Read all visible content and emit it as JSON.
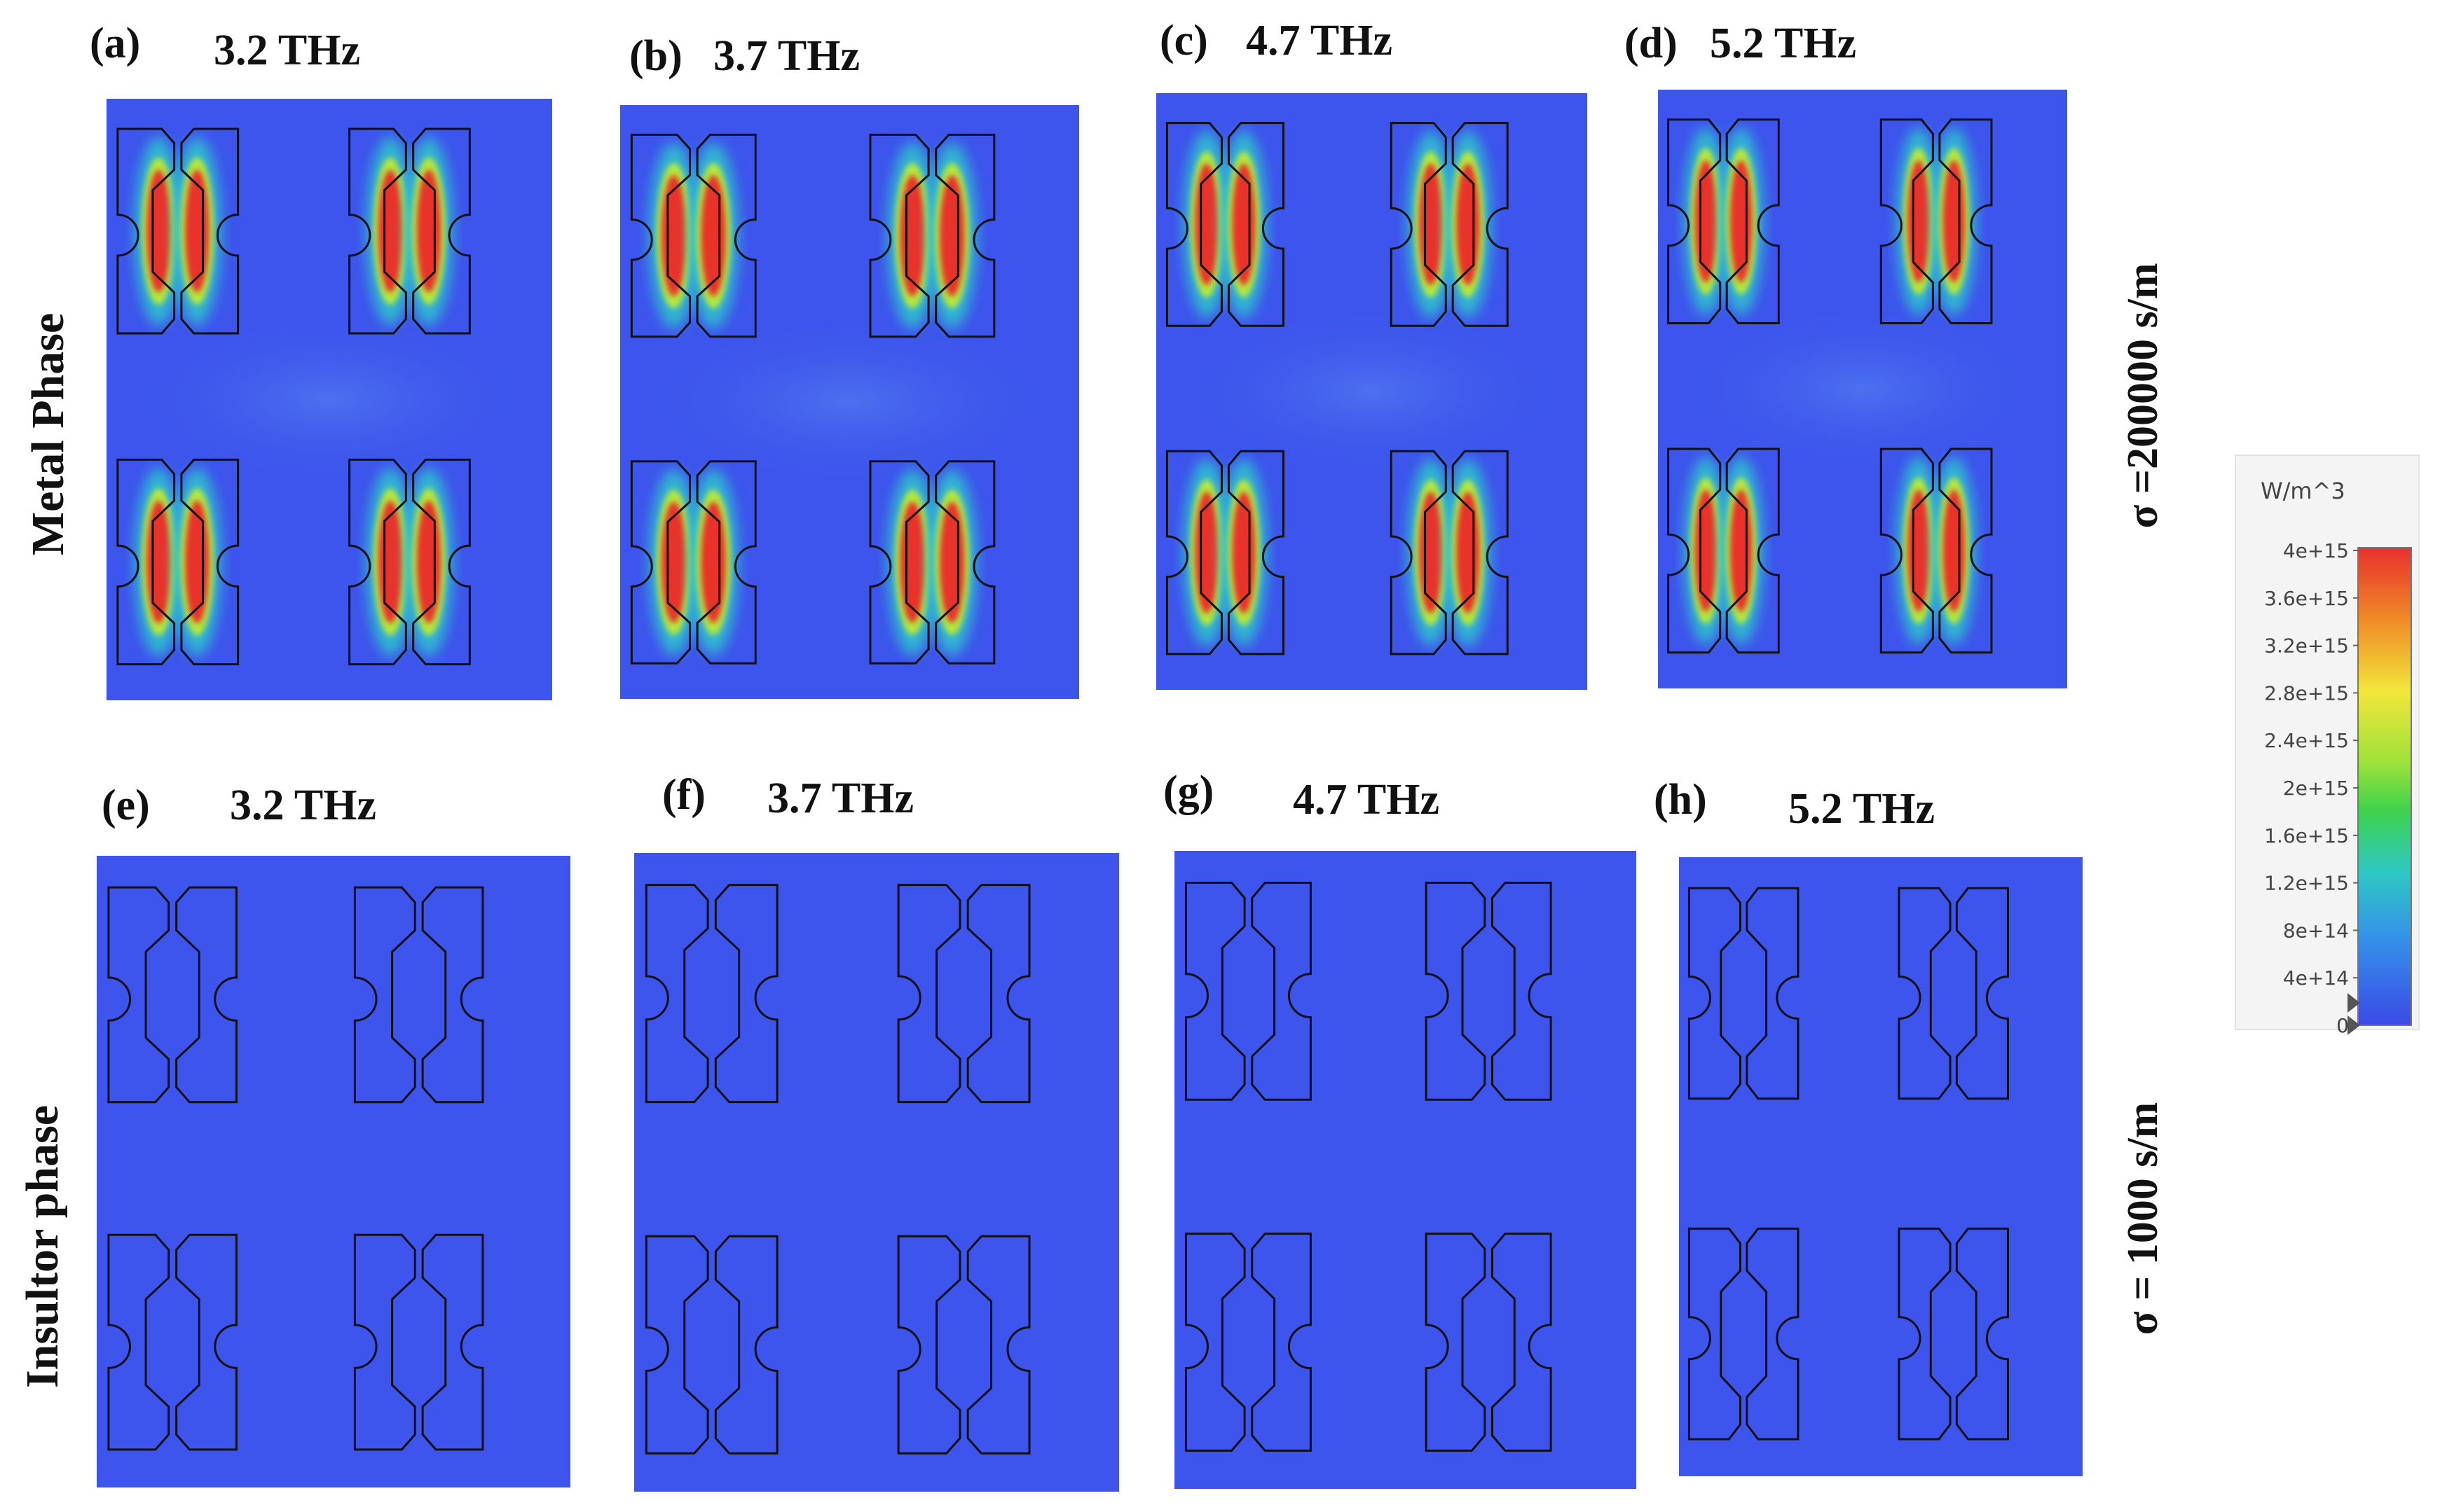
{
  "row_labels": {
    "top": "Metal Phase",
    "bottom": "Insultor phase"
  },
  "conductivity_labels": {
    "top": "σ =200000 s/m",
    "bottom": "σ = 1000 s/m"
  },
  "panels": [
    {
      "tag": "(a)",
      "freq": "3.2 THz",
      "phase": "metal"
    },
    {
      "tag": "(b)",
      "freq": "3.7 THz",
      "phase": "metal"
    },
    {
      "tag": "(c)",
      "freq": "4.7 THz",
      "phase": "metal"
    },
    {
      "tag": "(d)",
      "freq": "5.2 THz",
      "phase": "metal"
    },
    {
      "tag": "(e)",
      "freq": "3.2 THz",
      "phase": "insulator"
    },
    {
      "tag": "(f)",
      "freq": "3.7 THz",
      "phase": "insulator"
    },
    {
      "tag": "(g)",
      "freq": "4.7 THz",
      "phase": "insulator"
    },
    {
      "tag": "(h)",
      "freq": "5.2 THz",
      "phase": "insulator"
    }
  ],
  "colorbar": {
    "unit": "W/m^3",
    "ticks": [
      "4e+15",
      "3.6e+15",
      "3.2e+15",
      "2.8e+15",
      "2.4e+15",
      "2e+15",
      "1.6e+15",
      "1.2e+15",
      "8e+14",
      "4e+14",
      "0"
    ],
    "colors": [
      "#e8302c",
      "#f08a28",
      "#f5c82a",
      "#eaf23a",
      "#b6e83a",
      "#52d448",
      "#36d08c",
      "#2ec8cc",
      "#3696e8",
      "#3f5ff0",
      "#3b4ae6"
    ]
  },
  "colors": {
    "background_field": "#3d55ec",
    "hot": "#e8302c",
    "outline": "#111111"
  }
}
